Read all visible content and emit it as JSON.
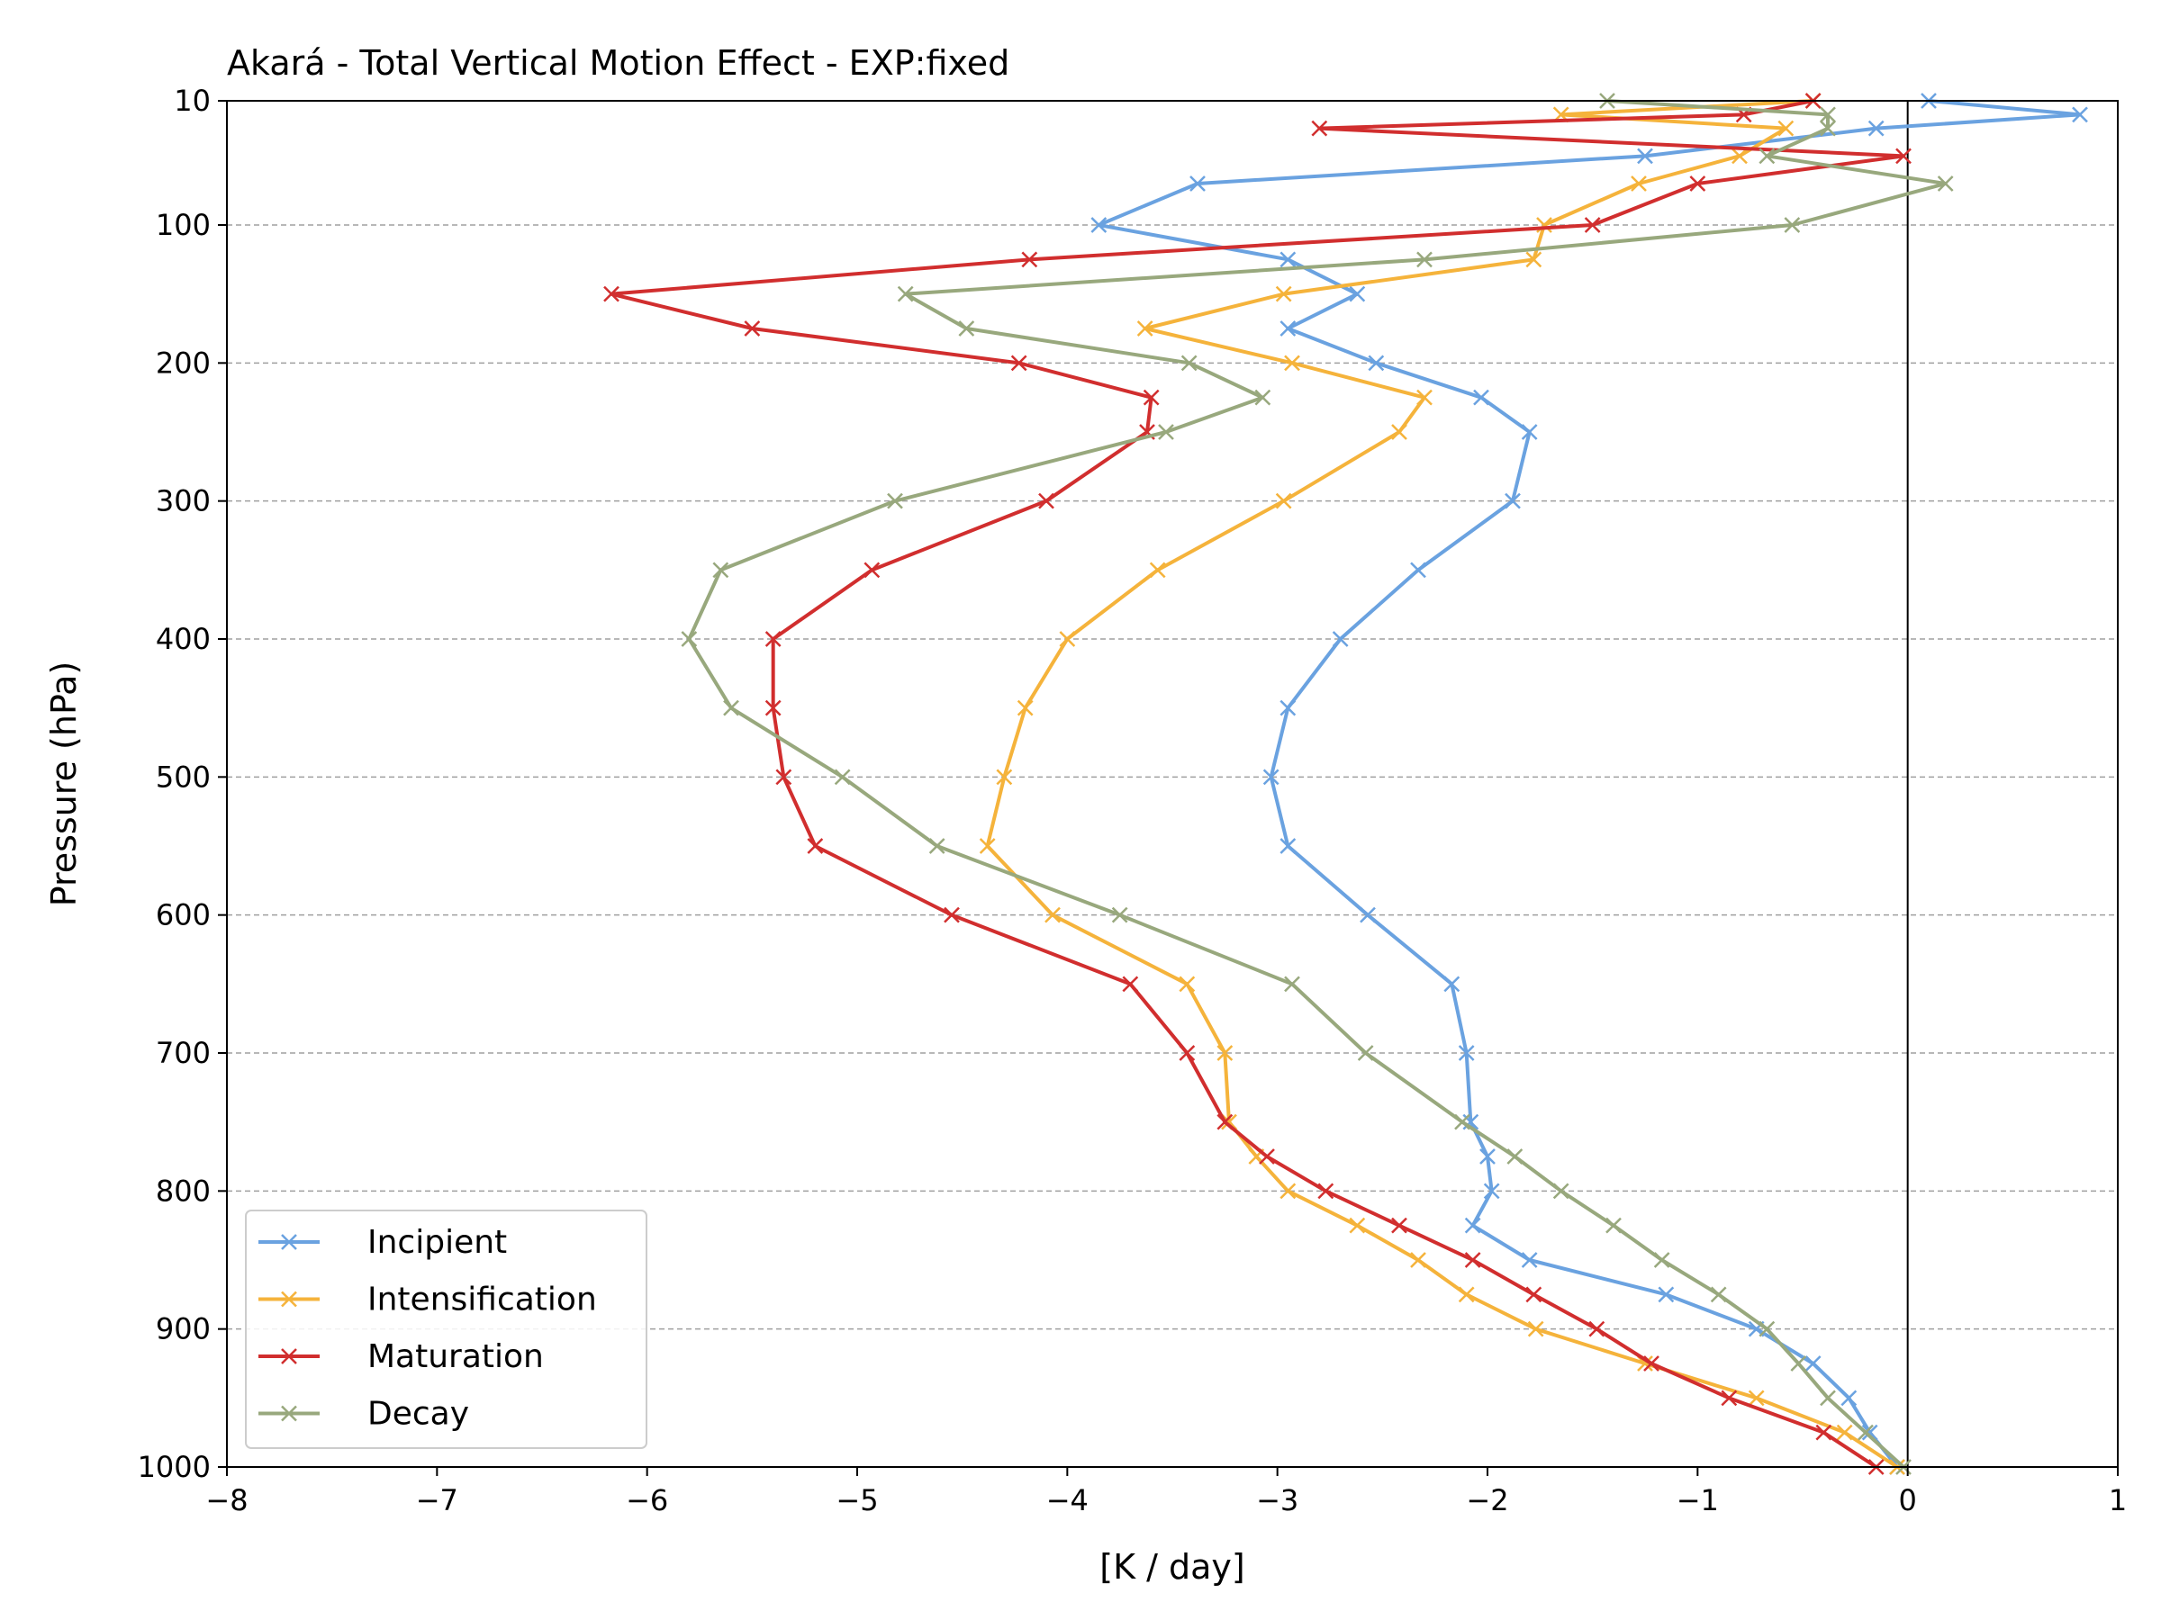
{
  "chart_data": {
    "type": "line",
    "title": "Akará - Total Vertical Motion Effect - EXP:fixed",
    "xlabel": "[K / day]",
    "ylabel": "Pressure (hPa)",
    "xlim": [
      -8,
      1
    ],
    "ylim": [
      1000,
      10
    ],
    "y_inverted": true,
    "xticks": [
      -8,
      -7,
      -6,
      -5,
      -4,
      -3,
      -2,
      -1,
      0,
      1
    ],
    "xtick_labels": [
      "−8",
      "−7",
      "−6",
      "−5",
      "−4",
      "−3",
      "−2",
      "−1",
      "0",
      "1"
    ],
    "yticks": [
      10,
      100,
      200,
      300,
      400,
      500,
      600,
      700,
      800,
      900,
      1000
    ],
    "ytick_labels": [
      "10",
      "100",
      "200",
      "300",
      "400",
      "500",
      "600",
      "700",
      "800",
      "900",
      "1000"
    ],
    "grid": "horizontal dashed",
    "zero_line": 0,
    "legend_position": "lower-left",
    "marker": "x",
    "pressure_levels": [
      10,
      20,
      30,
      50,
      70,
      100,
      125,
      150,
      175,
      200,
      225,
      250,
      300,
      350,
      400,
      450,
      500,
      550,
      600,
      650,
      700,
      750,
      775,
      800,
      825,
      850,
      875,
      900,
      925,
      950,
      975,
      1000
    ],
    "series": [
      {
        "name": "Incipient",
        "color": "#6aa2e0",
        "values": [
          0.1,
          0.82,
          -0.15,
          -1.25,
          -3.38,
          -3.85,
          -2.95,
          -2.62,
          -2.95,
          -2.53,
          -2.03,
          -1.8,
          -1.88,
          -2.33,
          -2.7,
          -2.95,
          -3.03,
          -2.95,
          -2.57,
          -2.17,
          -2.1,
          -2.08,
          -2.0,
          -1.98,
          -2.07,
          -1.8,
          -1.15,
          -0.72,
          -0.45,
          -0.28,
          -0.18,
          -0.05
        ]
      },
      {
        "name": "Intensification",
        "color": "#f5b33b",
        "values": [
          -0.45,
          -1.65,
          -0.58,
          -0.8,
          -1.28,
          -1.73,
          -1.78,
          -2.97,
          -3.63,
          -2.93,
          -2.3,
          -2.42,
          -2.97,
          -3.57,
          -4.0,
          -4.2,
          -4.3,
          -4.38,
          -4.07,
          -3.43,
          -3.25,
          -3.23,
          -3.1,
          -2.95,
          -2.62,
          -2.33,
          -2.1,
          -1.77,
          -1.25,
          -0.72,
          -0.3,
          -0.05
        ]
      },
      {
        "name": "Maturation",
        "color": "#d12e2e",
        "values": [
          -0.45,
          -0.78,
          -2.8,
          -0.02,
          -1.0,
          -1.5,
          -4.18,
          -6.17,
          -5.5,
          -4.23,
          -3.6,
          -3.62,
          -4.1,
          -4.93,
          -5.4,
          -5.4,
          -5.35,
          -5.2,
          -4.55,
          -3.7,
          -3.43,
          -3.25,
          -3.05,
          -2.77,
          -2.42,
          -2.07,
          -1.78,
          -1.48,
          -1.22,
          -0.85,
          -0.4,
          -0.15
        ]
      },
      {
        "name": "Decay",
        "color": "#98a87d",
        "values": [
          -1.43,
          -0.38,
          -0.38,
          -0.67,
          0.18,
          -0.55,
          -2.3,
          -4.77,
          -4.48,
          -3.42,
          -3.07,
          -3.53,
          -4.82,
          -5.65,
          -5.8,
          -5.6,
          -5.07,
          -4.62,
          -3.75,
          -2.93,
          -2.58,
          -2.12,
          -1.87,
          -1.65,
          -1.4,
          -1.17,
          -0.9,
          -0.67,
          -0.52,
          -0.38,
          -0.2,
          -0.02
        ]
      }
    ]
  }
}
